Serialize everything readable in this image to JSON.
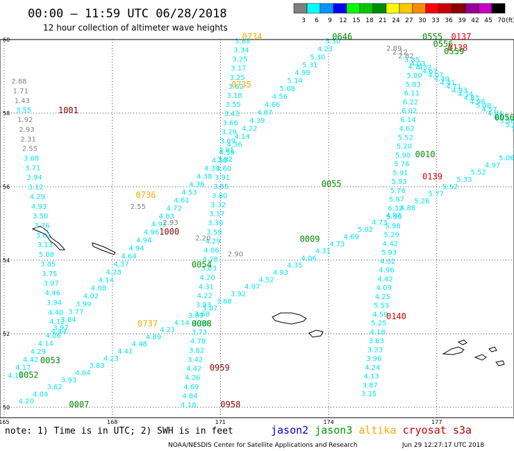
{
  "header": {
    "title": "00:00 – 11:59 UTC 06/28/2018",
    "subtitle": "12 hour collection of altimeter wave heights"
  },
  "colorbar": {
    "unit": "(ft)",
    "colors": [
      "#808080",
      "#00ffff",
      "#0096ff",
      "#0000ff",
      "#00ff00",
      "#00c800",
      "#008c00",
      "#ffff00",
      "#ffc800",
      "#ff8c00",
      "#ff0000",
      "#c80000",
      "#8c0000",
      "#960096",
      "#c800c8",
      "#000000"
    ],
    "labels": [
      "3",
      "6",
      "9",
      "12",
      "15",
      "18",
      "21",
      "24",
      "27",
      "30",
      "33",
      "36",
      "39",
      "42",
      "45",
      "70"
    ]
  },
  "axes": {
    "lon_labels": [
      "165",
      "168",
      "171",
      "174",
      "177"
    ],
    "lat_labels": [
      "60",
      "58",
      "56",
      "54",
      "52",
      "50"
    ]
  },
  "notes": {
    "note": "note:  1) Time is in UTC; 2) SWH is in feet"
  },
  "legend": [
    {
      "label": "jason2",
      "color": "#0000cc"
    },
    {
      "label": "jason3",
      "color": "#009900"
    },
    {
      "label": "altika",
      "color": "#ffa500"
    },
    {
      "label": "cryosat",
      "color": "#cc0000"
    },
    {
      "label": "s3a",
      "color": "#aa0000"
    }
  ],
  "footer": {
    "credit": "NOAA/NESDIS Center for Satellite Applications and Research",
    "timestamp": "Jun 29 12:27:17 UTC 2018"
  },
  "tracks": {
    "altika_ascending": {
      "time_labels": [
        {
          "text": "0737",
          "lon": 168.7,
          "lat": 52.2
        },
        {
          "text": "0736",
          "lon": 168.65,
          "lat": 55.7
        },
        {
          "text": "0735",
          "lon": 171.3,
          "lat": 58.7
        },
        {
          "text": "0734",
          "lon": 171.6,
          "lat": 60.0
        }
      ],
      "values": [
        "4.44",
        "4.12",
        "4.40",
        "3.94",
        "4.46",
        "3.97",
        "3.75",
        "3.85",
        "5.08",
        "3.13",
        "3.61",
        "3.76",
        "3.50",
        "4.93",
        "4.29",
        "3.12",
        "3.94",
        "3.71",
        "3.68",
        "2.55",
        "2.31",
        "2.93",
        "1.92",
        "3.55",
        "1.43",
        "1.71",
        "2.88"
      ]
    },
    "altika_descending": {
      "values": [
        "3.68",
        "3.34",
        "3.25",
        "3.17",
        "3.25",
        "3.62",
        "3.18",
        "3.55",
        "3.43",
        "3.66",
        "3.29",
        "3.69",
        "3.81",
        "3.82",
        "3.60",
        "3.91",
        "3.65",
        "3.80",
        "3.32",
        "3.17",
        "3.30",
        "3.59",
        "4.29",
        "4.06",
        "4.28",
        "3.03",
        "4.20",
        "4.31",
        "4.22",
        "3.93",
        "3.68",
        "4.09",
        "3.73",
        "4.78",
        "3.82",
        "3.42",
        "4.42",
        "4.26",
        "4.69",
        "4.84",
        "4.18"
      ]
    },
    "jason3_ascending_a": {
      "time_labels": [
        {
          "text": "0646",
          "lon": 174.1,
          "lat": 60.0
        },
        {
          "text": "0055",
          "lon": 173.8,
          "lat": 56.0
        },
        {
          "text": "0054",
          "lon": 170.2,
          "lat": 53.8
        },
        {
          "text": "0053",
          "lon": 166.0,
          "lat": 51.2
        },
        {
          "text": "0052",
          "lon": 165.4,
          "lat": 50.8
        }
      ],
      "values": [
        "4.11",
        "4.17",
        "4.42",
        "4.29",
        "4.14",
        "4.06",
        "3.97",
        "3.84",
        "3.77",
        "3.99",
        "4.02",
        "4.08",
        "4.14",
        "4.28",
        "4.37",
        "4.64",
        "4.94",
        "4.94",
        "4.96",
        "4.91",
        "4.83",
        "4.72",
        "4.61",
        "4.53",
        "4.36",
        "4.38",
        "4.34",
        "4.30",
        "4.59",
        "4.36",
        "4.14",
        "4.22",
        "4.39",
        "4.87",
        "4.66",
        "4.56",
        "5.08",
        "5.14",
        "4.99",
        "5.31",
        "5.30",
        "4.23",
        "5.30"
      ]
    },
    "jason3_ascending_b": {
      "time_labels": [
        {
          "text": "0009",
          "lon": 173.2,
          "lat": 54.5
        },
        {
          "text": "0010",
          "lon": 176.4,
          "lat": 56.8
        },
        {
          "text": "0008",
          "lon": 170.2,
          "lat": 52.2
        },
        {
          "text": "0007",
          "lon": 166.8,
          "lat": 50.0
        }
      ],
      "values": [
        "4.20",
        "4.04",
        "3.62",
        "3.93",
        "4.04",
        "3.83",
        "4.23",
        "4.41",
        "4.48",
        "4.89",
        "4.21",
        "4.14",
        "3.99",
        "3.87",
        "3.68",
        "3.92",
        "4.07",
        "4.52",
        "4.93",
        "4.35",
        "4.06",
        "4.31",
        "4.73",
        "4.69",
        "5.02",
        "4.73",
        "4.92",
        "4.88",
        "5.26",
        "5.77",
        "5.52",
        "5.33",
        "5.52",
        "4.97",
        "5.06",
        "5.11",
        "4.84",
        "4.57"
      ]
    },
    "cryosat": {
      "time_labels": [
        {
          "text": "0137",
          "lon": 177.4,
          "lat": 60.0
        },
        {
          "text": "0138",
          "lon": 177.3,
          "lat": 59.7
        },
        {
          "text": "0139",
          "lon": 176.6,
          "lat": 56.2
        },
        {
          "text": "0140",
          "lon": 175.6,
          "lat": 52.4
        }
      ],
      "values": [
        "4.71",
        "5.80",
        "5.83",
        "6.11",
        "6.22",
        "6.02",
        "6.14",
        "4.62",
        "5.52",
        "5.20",
        "5.90",
        "5.76",
        "5.91",
        "5.93",
        "5.76",
        "5.87",
        "6.32",
        "5.99",
        "5.98",
        "5.29",
        "4.42",
        "5.93",
        "4.02",
        "4.96",
        "4.42",
        "4.09",
        "4.25",
        "5.53",
        "4.59",
        "5.25",
        "4.18",
        "3.63",
        "3.23",
        "3.96",
        "4.24",
        "4.13",
        "3.87",
        "3.35"
      ]
    },
    "s3a": {
      "time_labels": [
        {
          "text": "1001",
          "lon": 166.5,
          "lat": 58.0
        },
        {
          "text": "1000",
          "lon": 169.3,
          "lat": 54.7
        },
        {
          "text": "0959",
          "lon": 170.7,
          "lat": 51.0
        },
        {
          "text": "0958",
          "lon": 171.0,
          "lat": 50.0
        }
      ],
      "values": [
        "2.90",
        "2.20",
        "2.93",
        "2.55"
      ]
    },
    "jason3_ne": {
      "time_labels": [
        {
          "text": "0555",
          "lon": 176.6,
          "lat": 60.0
        },
        {
          "text": "0556",
          "lon": 176.9,
          "lat": 59.8
        },
        {
          "text": "0559",
          "lon": 177.2,
          "lat": 59.6
        },
        {
          "text": "0056",
          "lon": 178.6,
          "lat": 57.8
        },
        {
          "text": "0057",
          "lon": 179.6,
          "lat": 57.3
        }
      ],
      "values": [
        "2.89",
        "2.12",
        "2.82",
        "3.85",
        "4.03",
        "4.32",
        "4.67",
        "4.07",
        "4.49",
        "4.41",
        "4.71",
        "4.93",
        "4.34",
        "4.83",
        "4.96",
        "5.08",
        "4.57",
        "4.84",
        "4.97",
        "5.38",
        "5.16",
        "5.06",
        "4.46",
        "4.44",
        "4.33",
        "4.74",
        "4.68"
      ]
    }
  }
}
